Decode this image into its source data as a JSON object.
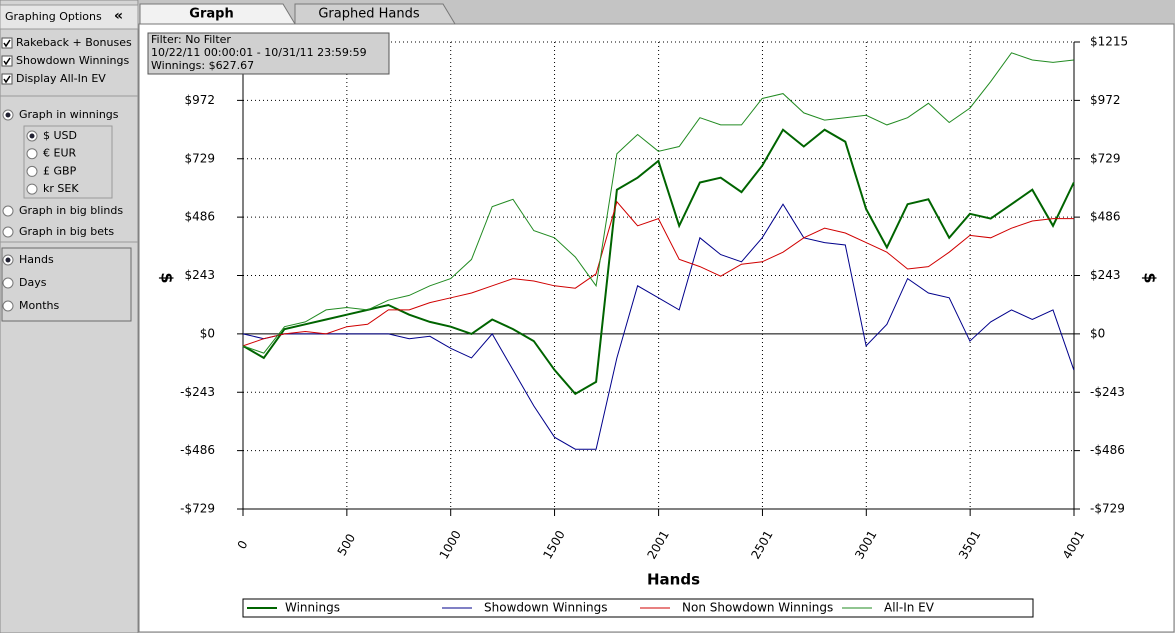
{
  "sidebar": {
    "title": "Graphing Options",
    "collapse_button": "«",
    "checkboxes": [
      {
        "label": "Rakeback + Bonuses",
        "checked": true
      },
      {
        "label": "Showdown Winnings",
        "checked": true
      },
      {
        "label": "Display All-In EV",
        "checked": true
      }
    ],
    "graph_modes": [
      {
        "label": "Graph in winnings",
        "selected": true
      },
      {
        "label": "Graph in big blinds",
        "selected": false
      },
      {
        "label": "Graph in big bets",
        "selected": false
      }
    ],
    "currencies": [
      {
        "label": "$ USD",
        "selected": true
      },
      {
        "label": "€ EUR",
        "selected": false
      },
      {
        "label": "£ GBP",
        "selected": false
      },
      {
        "label": "kr SEK",
        "selected": false
      }
    ],
    "x_modes": [
      {
        "label": "Hands",
        "selected": true
      },
      {
        "label": "Days",
        "selected": false
      },
      {
        "label": "Months",
        "selected": false
      }
    ]
  },
  "tabs": [
    {
      "label": "Graph",
      "active": true
    },
    {
      "label": "Graphed Hands",
      "active": false
    }
  ],
  "filter_box": {
    "lines": [
      "Filter: No Filter",
      "10/22/11 00:00:01 - 10/31/11 23:59:59",
      "Winnings: $627.67"
    ]
  },
  "chart_data": {
    "type": "line",
    "x_label": "Hands",
    "y_label": "$",
    "y2_label": "$",
    "xlim": [
      0,
      4001
    ],
    "xticks": [
      0,
      500,
      1000,
      1500,
      2001,
      2501,
      3001,
      3501,
      4001
    ],
    "ylim": [
      -729,
      1215
    ],
    "yticks": [
      {
        "value": -729,
        "label": "-$729"
      },
      {
        "value": -486,
        "label": "-$486"
      },
      {
        "value": -243,
        "label": "-$243"
      },
      {
        "value": 0,
        "label": "$0"
      },
      {
        "value": 243,
        "label": "$243"
      },
      {
        "value": 486,
        "label": "$486"
      },
      {
        "value": 729,
        "label": "$729"
      },
      {
        "value": 972,
        "label": "$972"
      },
      {
        "value": 1215,
        "label": "$1215"
      }
    ],
    "grid": true,
    "x": [
      0,
      100,
      200,
      300,
      400,
      500,
      600,
      700,
      800,
      900,
      1000,
      1100,
      1200,
      1300,
      1400,
      1500,
      1600,
      1700,
      1800,
      1900,
      2000,
      2100,
      2200,
      2300,
      2400,
      2500,
      2600,
      2700,
      2800,
      2900,
      3000,
      3100,
      3200,
      3300,
      3400,
      3500,
      3600,
      3700,
      3800,
      3900,
      4000
    ],
    "series": [
      {
        "name": "Winnings",
        "color": "#006400",
        "values": [
          -50,
          -100,
          20,
          40,
          60,
          80,
          100,
          120,
          80,
          50,
          30,
          0,
          60,
          20,
          -30,
          -150,
          -250,
          -200,
          600,
          650,
          720,
          450,
          630,
          650,
          590,
          700,
          850,
          780,
          850,
          800,
          520,
          360,
          540,
          560,
          400,
          500,
          480,
          540,
          600,
          450,
          630
        ]
      },
      {
        "name": "Showdown Winnings",
        "color": "#00008b",
        "values": [
          0,
          -20,
          0,
          0,
          0,
          0,
          0,
          0,
          -20,
          -10,
          -60,
          -100,
          0,
          -150,
          -300,
          -430,
          -480,
          -480,
          -100,
          200,
          150,
          100,
          400,
          330,
          300,
          400,
          540,
          400,
          380,
          370,
          -50,
          40,
          230,
          170,
          150,
          -30,
          50,
          100,
          60,
          100,
          -150
        ]
      },
      {
        "name": "Non Showdown Winnings",
        "color": "#d00000",
        "values": [
          -50,
          -20,
          0,
          10,
          0,
          30,
          40,
          100,
          100,
          130,
          150,
          170,
          200,
          230,
          220,
          200,
          190,
          250,
          550,
          450,
          480,
          310,
          280,
          240,
          290,
          300,
          340,
          400,
          440,
          420,
          380,
          340,
          270,
          280,
          340,
          410,
          400,
          440,
          470,
          480,
          480
        ]
      },
      {
        "name": "All-In EV",
        "color": "#228b22",
        "values": [
          -50,
          -80,
          30,
          50,
          100,
          110,
          100,
          140,
          160,
          200,
          230,
          310,
          530,
          560,
          430,
          400,
          320,
          200,
          750,
          830,
          760,
          780,
          900,
          870,
          870,
          980,
          1000,
          920,
          890,
          900,
          910,
          870,
          900,
          960,
          880,
          940,
          1050,
          1170,
          1140,
          1130,
          1140
        ]
      }
    ]
  }
}
